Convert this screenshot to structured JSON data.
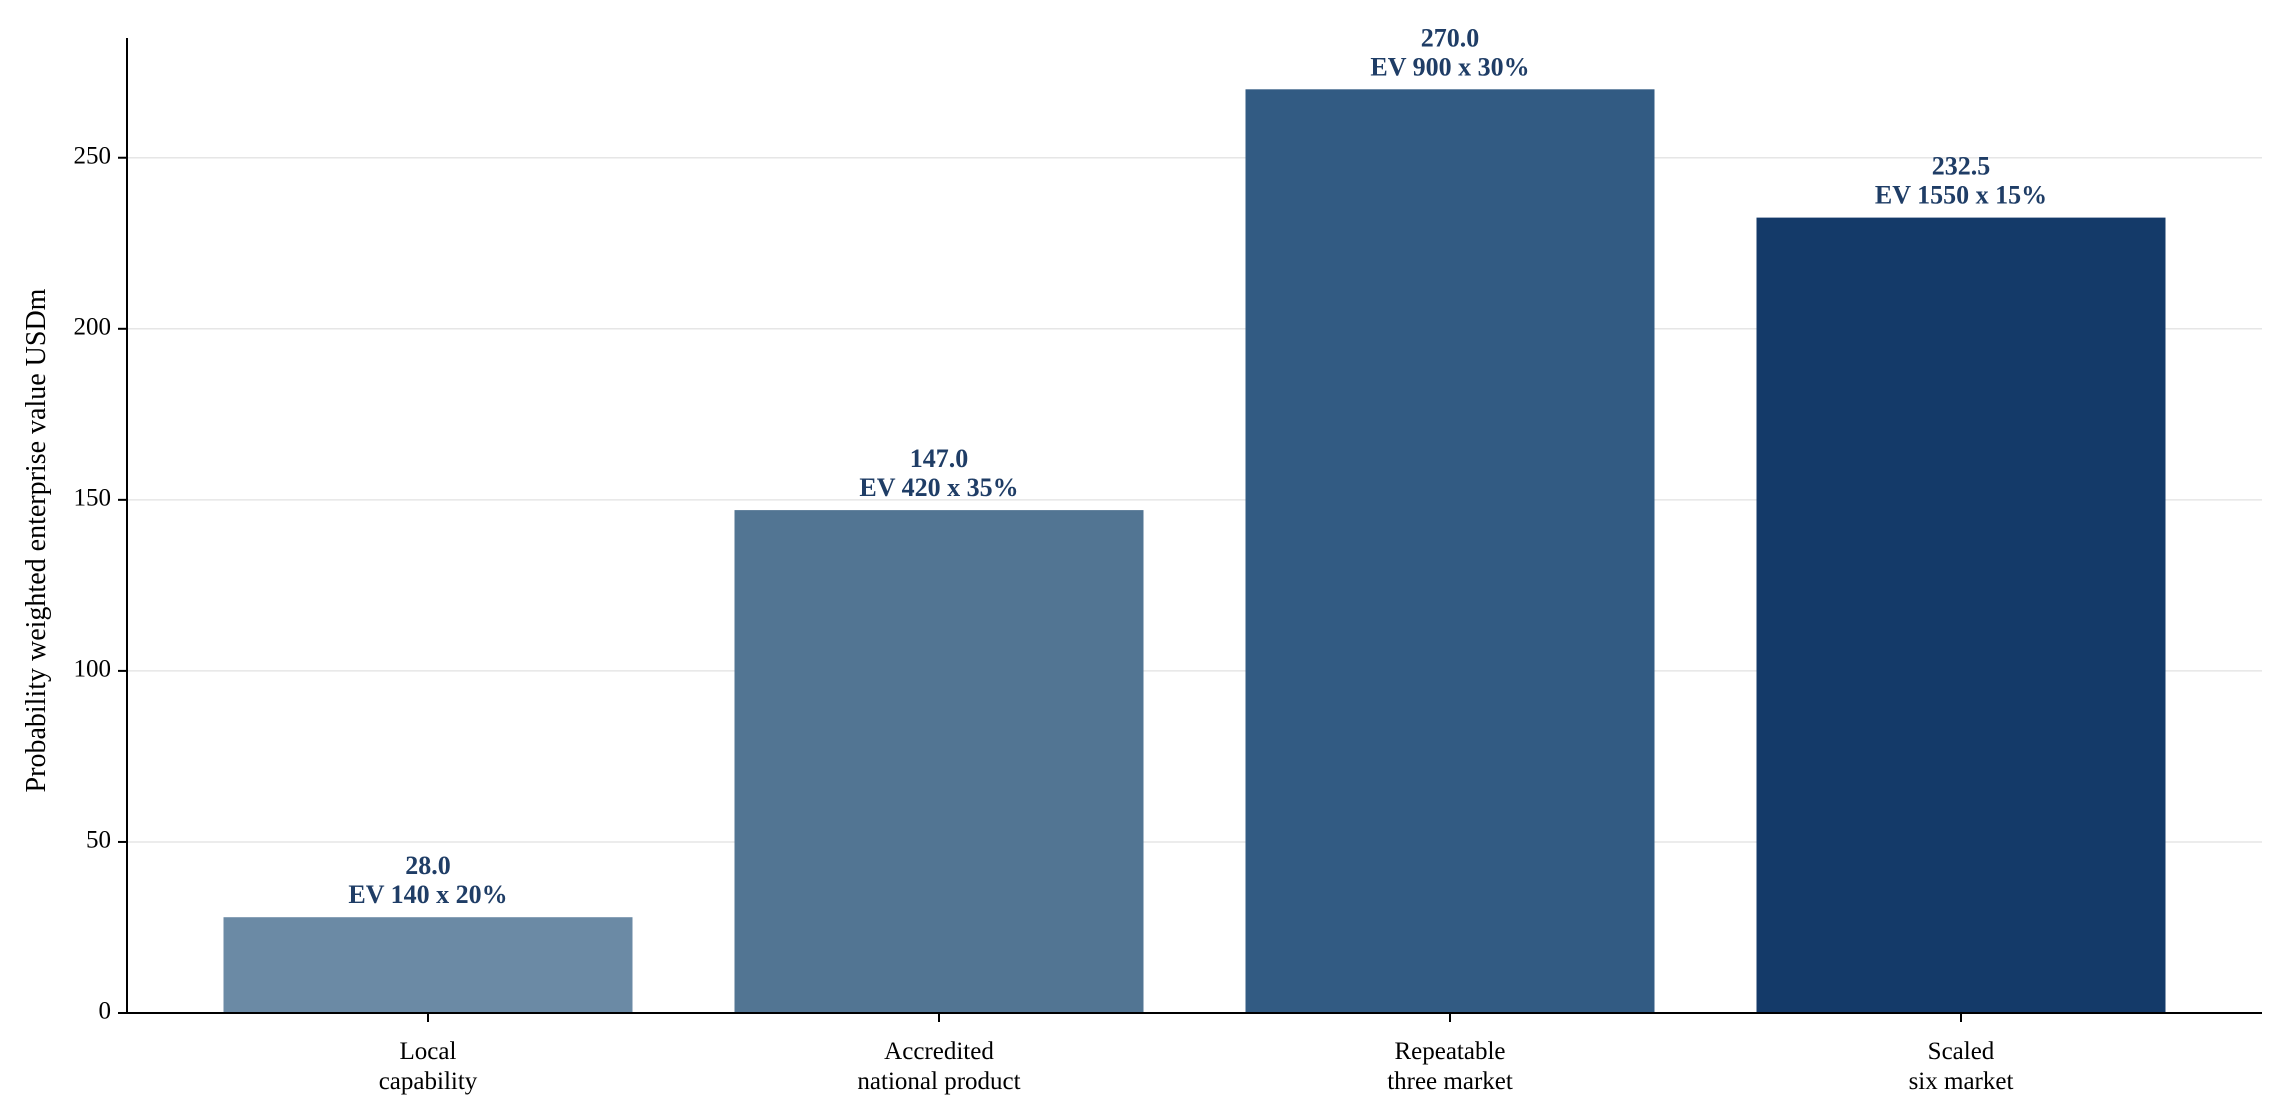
{
  "chart_data": {
    "type": "bar",
    "title": "",
    "xlabel": "",
    "ylabel": "Probability weighted enterprise value USDm",
    "categories": [
      [
        "Local",
        "capability"
      ],
      [
        "Accredited",
        "national product"
      ],
      [
        "Repeatable",
        "three market"
      ],
      [
        "Scaled",
        "six market"
      ]
    ],
    "values": [
      28.0,
      147.0,
      270.0,
      232.5
    ],
    "value_labels": [
      "28.0",
      "147.0",
      "270.0",
      "232.5"
    ],
    "annotations": [
      "EV 140 x 20%",
      "EV 420 x 35%",
      "EV 900 x 30%",
      "EV 1550 x 15%"
    ],
    "bar_colors": [
      "#6b8aa5",
      "#527593",
      "#325b83",
      "#143a69"
    ],
    "label_color": "#1f3d66",
    "ylim": [
      0,
      285
    ],
    "yticks": [
      0,
      50,
      100,
      150,
      200,
      250
    ],
    "grid": true,
    "grid_axis": "y",
    "legend": "none"
  }
}
